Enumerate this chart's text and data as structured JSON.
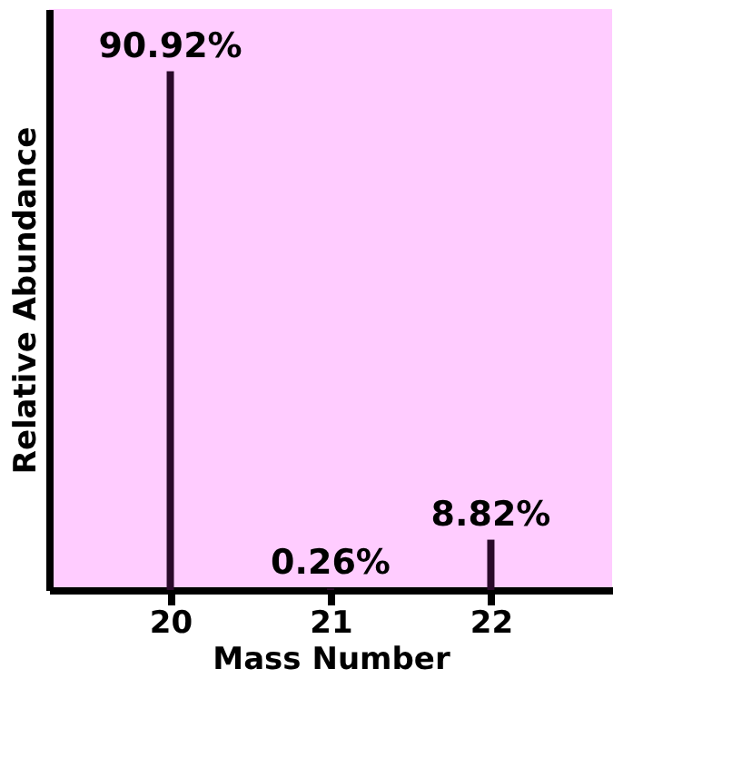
{
  "chart_data": {
    "type": "bar",
    "xlabel": "Mass Number",
    "ylabel": "Relative Abundance",
    "categories": [
      "20",
      "21",
      "22"
    ],
    "series": [
      {
        "color": "#2a0a2a",
        "values": [
          90.92,
          0.26,
          8.82
        ],
        "value_labels": [
          "90.92%",
          "0.26%",
          "8.82%"
        ]
      }
    ],
    "tick_labels": "x",
    "grid": false
  }
}
